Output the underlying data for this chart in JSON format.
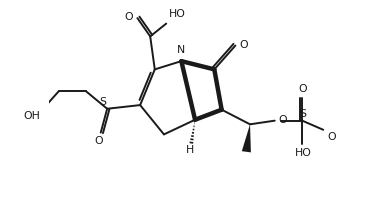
{
  "bg": "#ffffff",
  "lc": "#1a1a1a",
  "lw": 1.4,
  "blw": 3.2,
  "fs": 7.8,
  "fw": 3.81,
  "fh": 2.12,
  "dpi": 100,
  "xl": [
    -2.9,
    3.3
  ],
  "yl": [
    -3.1,
    1.5
  ]
}
